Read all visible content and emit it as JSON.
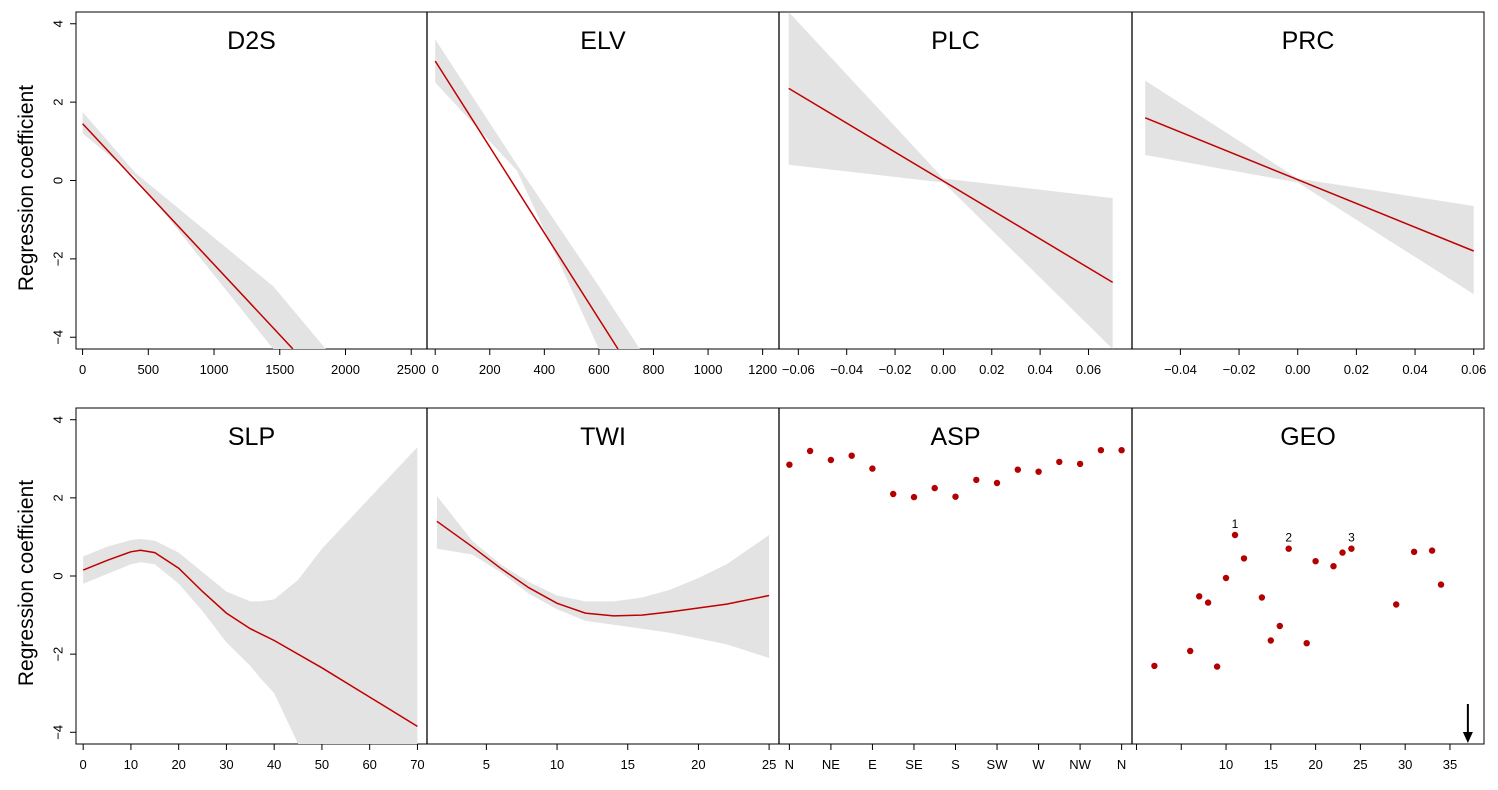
{
  "figure": {
    "ylabel_top": "Regression coefficient",
    "ylabel_bottom": "Regression coefficient",
    "ylim": [
      -4.3,
      4.3
    ],
    "yticks": [
      -4,
      -2,
      0,
      2,
      4
    ],
    "yticklabels": [
      "−4",
      "−2",
      "0",
      "2",
      "4"
    ]
  },
  "colors": {
    "line": "#c00000",
    "band": "#e3e3e3",
    "point": "#b30000",
    "axis": "#000000"
  },
  "chart_data": [
    {
      "id": "d2s",
      "title": "D2S",
      "type": "line",
      "row": 0,
      "col": 0,
      "xlim": [
        -50,
        2620
      ],
      "xticks": [
        0,
        500,
        1000,
        1500,
        2000,
        2500
      ],
      "xticklabels": [
        "0",
        "500",
        "1000",
        "1500",
        "2000",
        "2500"
      ],
      "line": {
        "x": [
          0,
          1600
        ],
        "y": [
          1.45,
          -4.3
        ]
      },
      "band": {
        "x": [
          0,
          400,
          1450,
          1850
        ],
        "upper": [
          1.75,
          0.2,
          -2.7,
          -4.3
        ],
        "lower": [
          1.2,
          0.1,
          -4.3,
          -4.3
        ]
      }
    },
    {
      "id": "elv",
      "title": "ELV",
      "type": "line",
      "row": 0,
      "col": 1,
      "xlim": [
        -30,
        1260
      ],
      "xticks": [
        0,
        200,
        400,
        600,
        800,
        1000,
        1200
      ],
      "xticklabels": [
        "0",
        "200",
        "400",
        "600",
        "800",
        "1000",
        "1200"
      ],
      "line": {
        "x": [
          0,
          670
        ],
        "y": [
          3.05,
          -4.3
        ]
      },
      "band": {
        "x": [
          0,
          300,
          600,
          750
        ],
        "upper": [
          3.6,
          0.4,
          -2.7,
          -4.3
        ],
        "lower": [
          2.5,
          0.25,
          -4.3,
          -4.3
        ]
      }
    },
    {
      "id": "plc",
      "title": "PLC",
      "type": "line",
      "row": 0,
      "col": 2,
      "xlim": [
        -0.068,
        0.078
      ],
      "xticks": [
        -0.06,
        -0.04,
        -0.02,
        0.0,
        0.02,
        0.04,
        0.06
      ],
      "xticklabels": [
        "−0.06",
        "−0.04",
        "−0.02",
        "0.00",
        "0.02",
        "0.04",
        "0.06"
      ],
      "line": {
        "x": [
          -0.064,
          0.07
        ],
        "y": [
          2.35,
          -2.6
        ]
      },
      "band": {
        "x": [
          -0.064,
          0.0,
          0.07
        ],
        "upper": [
          4.3,
          0.05,
          -0.45
        ],
        "lower": [
          0.4,
          -0.05,
          -4.3
        ]
      }
    },
    {
      "id": "prc",
      "title": "PRC",
      "type": "line",
      "row": 0,
      "col": 3,
      "xlim": [
        -0.0565,
        0.0635
      ],
      "xticks": [
        -0.04,
        -0.02,
        0.0,
        0.02,
        0.04,
        0.06
      ],
      "xticklabels": [
        "−0.04",
        "−0.02",
        "0.00",
        "0.02",
        "0.04",
        "0.06"
      ],
      "line": {
        "x": [
          -0.052,
          0.06
        ],
        "y": [
          1.6,
          -1.8
        ]
      },
      "band": {
        "x": [
          -0.052,
          0.0,
          0.06
        ],
        "upper": [
          2.55,
          0.05,
          -0.65
        ],
        "lower": [
          0.65,
          -0.05,
          -2.9
        ]
      }
    },
    {
      "id": "slp",
      "title": "SLP",
      "type": "line",
      "row": 1,
      "col": 0,
      "xlim": [
        -1.5,
        72
      ],
      "xticks": [
        0,
        10,
        20,
        30,
        40,
        50,
        60,
        70
      ],
      "xticklabels": [
        "0",
        "10",
        "20",
        "30",
        "40",
        "50",
        "60",
        "70"
      ],
      "line": {
        "x": [
          0,
          5,
          10,
          12,
          15,
          20,
          25,
          30,
          35,
          40,
          50,
          60,
          70
        ],
        "y": [
          0.15,
          0.4,
          0.62,
          0.66,
          0.6,
          0.2,
          -0.4,
          -0.95,
          -1.35,
          -1.65,
          -2.35,
          -3.1,
          -3.85
        ]
      },
      "band": {
        "x": [
          0,
          5,
          10,
          12,
          15,
          20,
          25,
          30,
          35,
          37,
          40,
          45,
          50,
          60,
          70
        ],
        "upper": [
          0.5,
          0.75,
          0.92,
          0.95,
          0.9,
          0.6,
          0.1,
          -0.4,
          -0.65,
          -0.65,
          -0.6,
          -0.1,
          0.7,
          2.0,
          3.3
        ],
        "lower": [
          -0.2,
          0.05,
          0.3,
          0.35,
          0.3,
          -0.2,
          -0.9,
          -1.7,
          -2.3,
          -2.6,
          -3.0,
          -4.3,
          -4.3,
          -4.3,
          -4.3
        ]
      }
    },
    {
      "id": "twi",
      "title": "TWI",
      "type": "line",
      "row": 1,
      "col": 1,
      "xlim": [
        0.8,
        25.7
      ],
      "xticks": [
        5,
        10,
        15,
        20,
        25
      ],
      "xticklabels": [
        "5",
        "10",
        "15",
        "20",
        "25"
      ],
      "line": {
        "x": [
          1.5,
          4,
          6,
          8,
          10,
          12,
          14,
          16,
          18,
          20,
          22,
          25
        ],
        "y": [
          1.4,
          0.75,
          0.2,
          -0.3,
          -0.7,
          -0.95,
          -1.02,
          -1.0,
          -0.92,
          -0.82,
          -0.72,
          -0.5
        ]
      },
      "band": {
        "x": [
          1.5,
          4,
          6,
          8,
          10,
          12,
          14,
          16,
          18,
          20,
          22,
          25
        ],
        "upper": [
          2.05,
          0.9,
          0.3,
          -0.15,
          -0.5,
          -0.65,
          -0.65,
          -0.55,
          -0.35,
          -0.05,
          0.3,
          1.05
        ],
        "lower": [
          0.7,
          0.55,
          0.1,
          -0.45,
          -0.85,
          -1.15,
          -1.25,
          -1.35,
          -1.45,
          -1.6,
          -1.75,
          -2.1
        ]
      }
    },
    {
      "id": "asp",
      "title": "ASP",
      "type": "scatter",
      "row": 1,
      "col": 2,
      "xlim": [
        -0.5,
        16.5
      ],
      "xticks": [
        0,
        2,
        4,
        6,
        8,
        10,
        12,
        14,
        16
      ],
      "xticklabels": [
        "N",
        "NE",
        "E",
        "SE",
        "S",
        "SW",
        "W",
        "NW",
        "N"
      ],
      "points": {
        "x": [
          0,
          1,
          2,
          3,
          4,
          5,
          6,
          7,
          8,
          9,
          10,
          11,
          12,
          13,
          14,
          15,
          16
        ],
        "y": [
          2.85,
          3.2,
          2.97,
          3.08,
          2.75,
          2.1,
          2.02,
          2.25,
          2.03,
          2.46,
          2.38,
          2.72,
          2.67,
          2.92,
          2.87,
          3.22,
          3.22
        ]
      }
    },
    {
      "id": "geo",
      "title": "GEO",
      "type": "scatter",
      "row": 1,
      "col": 3,
      "xlim": [
        -0.5,
        38.8
      ],
      "xticks": [
        0,
        5,
        10,
        15,
        20,
        25,
        30,
        35
      ],
      "xticklabels": [
        "",
        "",
        "10",
        "15",
        "20",
        "25",
        "30",
        "35"
      ],
      "points": {
        "x": [
          2,
          6,
          7,
          8,
          9,
          10,
          11,
          12,
          14,
          15,
          16,
          17,
          19,
          20,
          22,
          23,
          24,
          29,
          31,
          33,
          34
        ],
        "y": [
          -2.3,
          -1.92,
          -0.52,
          -0.68,
          -2.32,
          -0.05,
          1.05,
          0.45,
          -0.55,
          -1.65,
          -1.28,
          0.7,
          -1.72,
          0.38,
          0.25,
          0.6,
          0.7,
          -0.73,
          0.62,
          0.65,
          -0.22
        ]
      },
      "annotations": [
        {
          "text": "1",
          "x": 11,
          "y": 1.05
        },
        {
          "text": "2",
          "x": 17,
          "y": 0.7
        },
        {
          "text": "3",
          "x": 24,
          "y": 0.7
        }
      ],
      "arrow": {
        "x": 37
      }
    }
  ]
}
